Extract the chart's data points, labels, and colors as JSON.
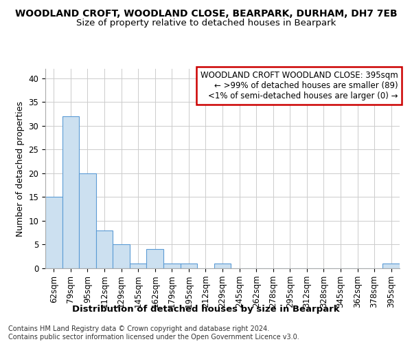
{
  "title": "WOODLAND CROFT, WOODLAND CLOSE, BEARPARK, DURHAM, DH7 7EB",
  "subtitle": "Size of property relative to detached houses in Bearpark",
  "xlabel": "Distribution of detached houses by size in Bearpark",
  "ylabel": "Number of detached properties",
  "categories": [
    "62sqm",
    "79sqm",
    "95sqm",
    "112sqm",
    "129sqm",
    "145sqm",
    "162sqm",
    "179sqm",
    "195sqm",
    "212sqm",
    "229sqm",
    "245sqm",
    "262sqm",
    "278sqm",
    "295sqm",
    "312sqm",
    "328sqm",
    "345sqm",
    "362sqm",
    "378sqm",
    "395sqm"
  ],
  "values": [
    15,
    32,
    20,
    8,
    5,
    1,
    4,
    1,
    1,
    0,
    1,
    0,
    0,
    0,
    0,
    0,
    0,
    0,
    0,
    0,
    1
  ],
  "bar_color": "#cce0f0",
  "bar_edge_color": "#5b9bd5",
  "ylim": [
    0,
    42
  ],
  "yticks": [
    0,
    5,
    10,
    15,
    20,
    25,
    30,
    35,
    40
  ],
  "annotation_text": "WOODLAND CROFT WOODLAND CLOSE: 395sqm\n← >99% of detached houses are smaller (89)\n<1% of semi-detached houses are larger (0) →",
  "annotation_box_color": "#ffffff",
  "annotation_box_edge_color": "#cc0000",
  "footer_text": "Contains HM Land Registry data © Crown copyright and database right 2024.\nContains public sector information licensed under the Open Government Licence v3.0.",
  "title_fontsize": 10,
  "subtitle_fontsize": 9.5,
  "xlabel_fontsize": 9.5,
  "ylabel_fontsize": 9,
  "tick_fontsize": 8.5,
  "annotation_fontsize": 8.5,
  "footer_fontsize": 7,
  "background_color": "#ffffff",
  "grid_color": "#cccccc"
}
